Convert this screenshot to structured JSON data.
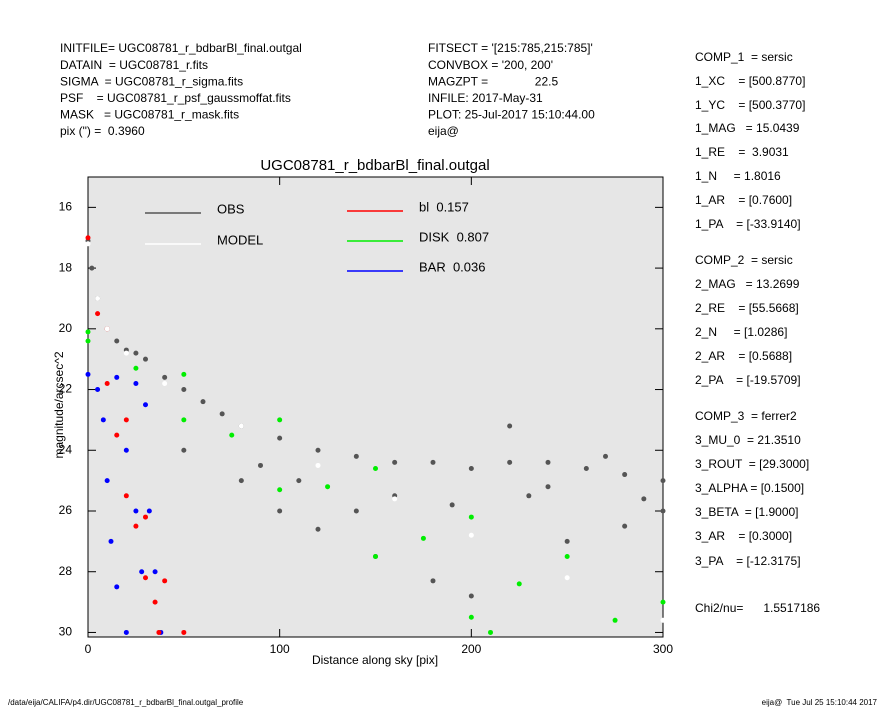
{
  "header": {
    "left": [
      "INITFILE= UGC08781_r_bdbarBl_final.outgal",
      "DATAIN  = UGC08781_r.fits",
      "SIGMA  = UGC08781_r_sigma.fits",
      "PSF    = UGC08781_r_psf_gaussmoffat.fits",
      "MASK   = UGC08781_r_mask.fits",
      "pix (\") =  0.3960"
    ],
    "middle": [
      "FITSECT = '[215:785,215:785]'",
      "CONVBOX = '200, 200'",
      "MAGZPT =              22.5",
      "INFILE: 2017-May-31",
      "PLOT: 25-Jul-2017 15:10:44.00",
      "eija@"
    ]
  },
  "parameters": [
    "COMP_1  = sersic",
    "1_XC    = [500.8770]",
    "1_YC    = [500.3770]",
    "1_MAG   = 15.0439",
    "1_RE    =  3.9031",
    "1_N     = 1.8016",
    "1_AR    = [0.7600]",
    "1_PA    = [-33.9140]",
    "COMP_2  = sersic",
    "2_MAG   = 13.2699",
    "2_RE    = [55.5668]",
    "2_N     = [1.0286]",
    "2_AR    = [0.5688]",
    "2_PA    = [-19.5709]",
    "COMP_3  = ferrer2",
    "3_MU_0  = 21.3510",
    "3_ROUT  = [29.3000]",
    "3_ALPHA = [0.1500]",
    "3_BETA  = [1.9000]",
    "3_AR    = [0.3000]",
    "3_PA    = [-12.3175]",
    "Chi2/nu=      1.5517186"
  ],
  "footer": {
    "left": "/data/eija/CALIFA/p4.dir/UGC08781_r_bdbarBl_final.outgal_profile",
    "right": "eija@  Tue Jul 25 15:10:44 2017"
  },
  "chart_data": {
    "type": "scatter",
    "title": "UGC08781_r_bdbarBl_final.outgal",
    "x_label": "Distance along sky [pix]",
    "y_label": "magnitude/arcsec^2",
    "xlim": [
      0,
      300
    ],
    "xticks": [
      0,
      100,
      200,
      300
    ],
    "ylim": [
      15,
      30.15
    ],
    "yticks": [
      16,
      18,
      20,
      22,
      24,
      26,
      28,
      30
    ],
    "background": "#e6e6e6",
    "series": [
      {
        "name": "OBS",
        "color": "#555555",
        "x": [
          0,
          2,
          5,
          10,
          15,
          20,
          25,
          30,
          40,
          50,
          60,
          70,
          80,
          100,
          120,
          140,
          160,
          180,
          200,
          220,
          240,
          260,
          280,
          300,
          50,
          80,
          90,
          100,
          120,
          150,
          160,
          180,
          200,
          220,
          230,
          250,
          270,
          280,
          300,
          110,
          140,
          190,
          240,
          290
        ],
        "values": [
          17.1,
          18,
          19,
          20,
          20.4,
          20.7,
          20.8,
          21,
          21.6,
          22,
          22.4,
          22.8,
          23.2,
          23.6,
          24,
          24.2,
          24.4,
          24.4,
          24.6,
          24.4,
          24.4,
          24.6,
          24.8,
          25,
          24,
          25,
          24.5,
          26,
          26.6,
          27.5,
          25.5,
          28.3,
          28.8,
          23.2,
          25.5,
          27,
          24.2,
          26.5,
          26,
          25,
          26,
          25.8,
          25.2,
          25.6
        ]
      },
      {
        "name": "MODEL",
        "color": "#ffffff",
        "x": [
          0,
          5,
          10,
          20,
          40,
          80,
          120,
          160,
          200,
          250,
          300
        ],
        "values": [
          17.2,
          19,
          20,
          20.8,
          21.8,
          23.2,
          24.5,
          25.6,
          26.8,
          28.2,
          29.6
        ]
      },
      {
        "name": "bl  0.157",
        "color": "#ff0000",
        "x": [
          0,
          10,
          20,
          30,
          40,
          50,
          5,
          10,
          20,
          30,
          37,
          15,
          25,
          35
        ],
        "values": [
          17,
          20,
          23,
          26.2,
          28.3,
          30,
          19.5,
          21.8,
          25.5,
          28.2,
          30,
          23.5,
          26.5,
          29
        ]
      },
      {
        "name": "DISK  0.807",
        "color": "#00ee00",
        "x": [
          0,
          50,
          100,
          150,
          200,
          250,
          300,
          0,
          50,
          100,
          150,
          200,
          210,
          25,
          75,
          125,
          175,
          225,
          275
        ],
        "values": [
          20.1,
          21.5,
          23,
          24.6,
          26.2,
          27.5,
          29,
          20.4,
          23,
          25.3,
          27.5,
          29.5,
          30,
          21.3,
          23.5,
          25.2,
          26.9,
          28.4,
          29.6
        ]
      },
      {
        "name": "BAR  0.036",
        "color": "#0000ff",
        "x": [
          0,
          15,
          25,
          30,
          32,
          35,
          38,
          5,
          8,
          10,
          12,
          15,
          20,
          20,
          25,
          28
        ],
        "values": [
          21.5,
          21.6,
          21.8,
          22.5,
          26,
          28,
          30,
          22,
          23,
          25,
          27,
          28.5,
          30,
          24,
          26,
          28
        ]
      }
    ]
  }
}
